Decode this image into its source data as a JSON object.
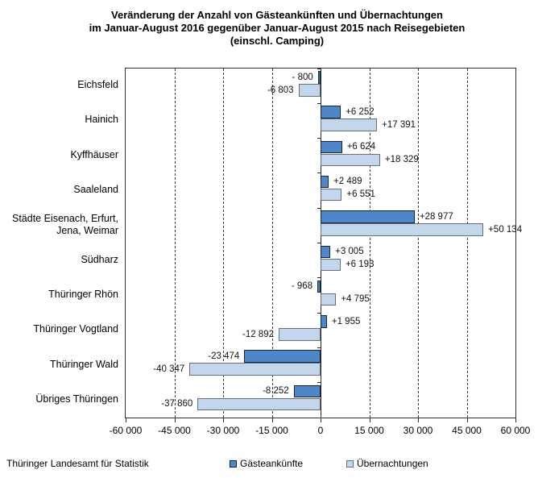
{
  "chart_data": {
    "type": "bar",
    "orientation": "horizontal",
    "title_lines": [
      "Veränderung der Anzahl von Gästeankünften und Übernachtungen",
      "im Januar-August 2016 gegenüber  Januar-August 2015 nach Reisegebieten",
      "(einschl. Camping)"
    ],
    "categories": [
      "Eichsfeld",
      "Hainich",
      "Kyffhäuser",
      "Saaleland",
      "Städte Eisenach, Erfurt,\nJena, Weimar",
      "Südharz",
      "Thüringer Rhön",
      "Thüringer Vogtland",
      "Thüringer Wald",
      "Übriges Thüringen"
    ],
    "series": [
      {
        "name": "Gästeankünfte",
        "color": "#4E86C8",
        "border_color": "#16233C",
        "values": [
          -800,
          6252,
          6624,
          2489,
          28977,
          3005,
          -968,
          1955,
          -23474,
          -8252
        ],
        "labels": [
          "- 800",
          "+6 252",
          "+6 624",
          "+2 489",
          "+28 977",
          "+3 005",
          "- 968",
          "+1 955",
          "-23 474",
          "-8 252"
        ]
      },
      {
        "name": "Übernachtungen",
        "color": "#C3D6EC",
        "border_color": "#64707F",
        "values": [
          -6803,
          17391,
          18329,
          6551,
          50134,
          6193,
          4795,
          -12892,
          -40347,
          -37860
        ],
        "labels": [
          "-6 803",
          "+17 391",
          "+18 329",
          "+6 551",
          "+50 134",
          "+6 193",
          "+4 795",
          "-12 892",
          "-40 347",
          "-37 860"
        ]
      }
    ],
    "x_axis": {
      "min": -60000,
      "max": 60000,
      "tick_interval": 15000,
      "ticks": [
        -60000,
        -45000,
        -30000,
        -15000,
        0,
        15000,
        30000,
        45000,
        60000
      ],
      "tick_labels": [
        "-60 000",
        "-45 000",
        "-30 000",
        "-15 000",
        "0",
        "15 000",
        "30 000",
        "45 000",
        "60 000"
      ]
    },
    "grid": "dashed-vertical",
    "legend_position": "bottom"
  },
  "footer": {
    "source": "Thüringer Landesamt für Statistik"
  },
  "legend": {
    "items": [
      {
        "label": "Gästeankünfte",
        "color": "#4E86C8",
        "border_color": "#16233C"
      },
      {
        "label": "Übernachtungen",
        "color": "#C3D6EC",
        "border_color": "#64707F"
      }
    ]
  }
}
